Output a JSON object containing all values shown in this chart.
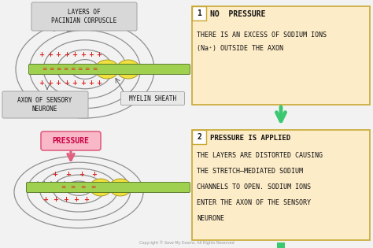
{
  "bg_color": "#f2f2f2",
  "box_bg": "#fdecc8",
  "box_edge": "#c8a830",
  "label_bg": "#d8d8d8",
  "label_edge": "#aaaaaa",
  "pressure_bg": "#f8b8c8",
  "pressure_edge": "#e06080",
  "myelin_label_bg": "#e8e8e8",
  "arrow_green": "#3cc870",
  "arrow_pink": "#e06080",
  "axon_fill": "#a0d050",
  "axon_edge": "#507020",
  "myelin_fill": "#f0e040",
  "myelin_edge": "#a09020",
  "layer_color": "#909090",
  "plus_color": "#dd2222",
  "minus_color": "#dd2222",
  "dark_arrow": "#666666",
  "white": "#ffffff",
  "black": "#111111",
  "num1": "1",
  "num2": "2",
  "title1": "NO  PRESSURE",
  "body1": [
    "THERE IS AN EXCESS OF SODIUM IONS",
    "(Na⁺) OUTSIDE THE AXON"
  ],
  "title2": "PRESSURE IS APPLIED",
  "body2": [
    "THE LAYERS ARE DISTORTED CAUSING",
    "THE STRETCH–MEDIATED SODIUM",
    "CHANNELS TO OPEN. SODIUM IONS",
    "ENTER THE AXON OF THE SENSORY",
    "NEURONE"
  ],
  "label_layers": "LAYERS OF\nPACINIAN CORPUSCLE",
  "label_axon": "AXON OF SENSORY\nNEURONE",
  "label_myelin": "MYELIN SHEATH",
  "label_pressure": "PRESSURE",
  "copyright": "Copyright © Save My Exams. All Rights Reserved"
}
